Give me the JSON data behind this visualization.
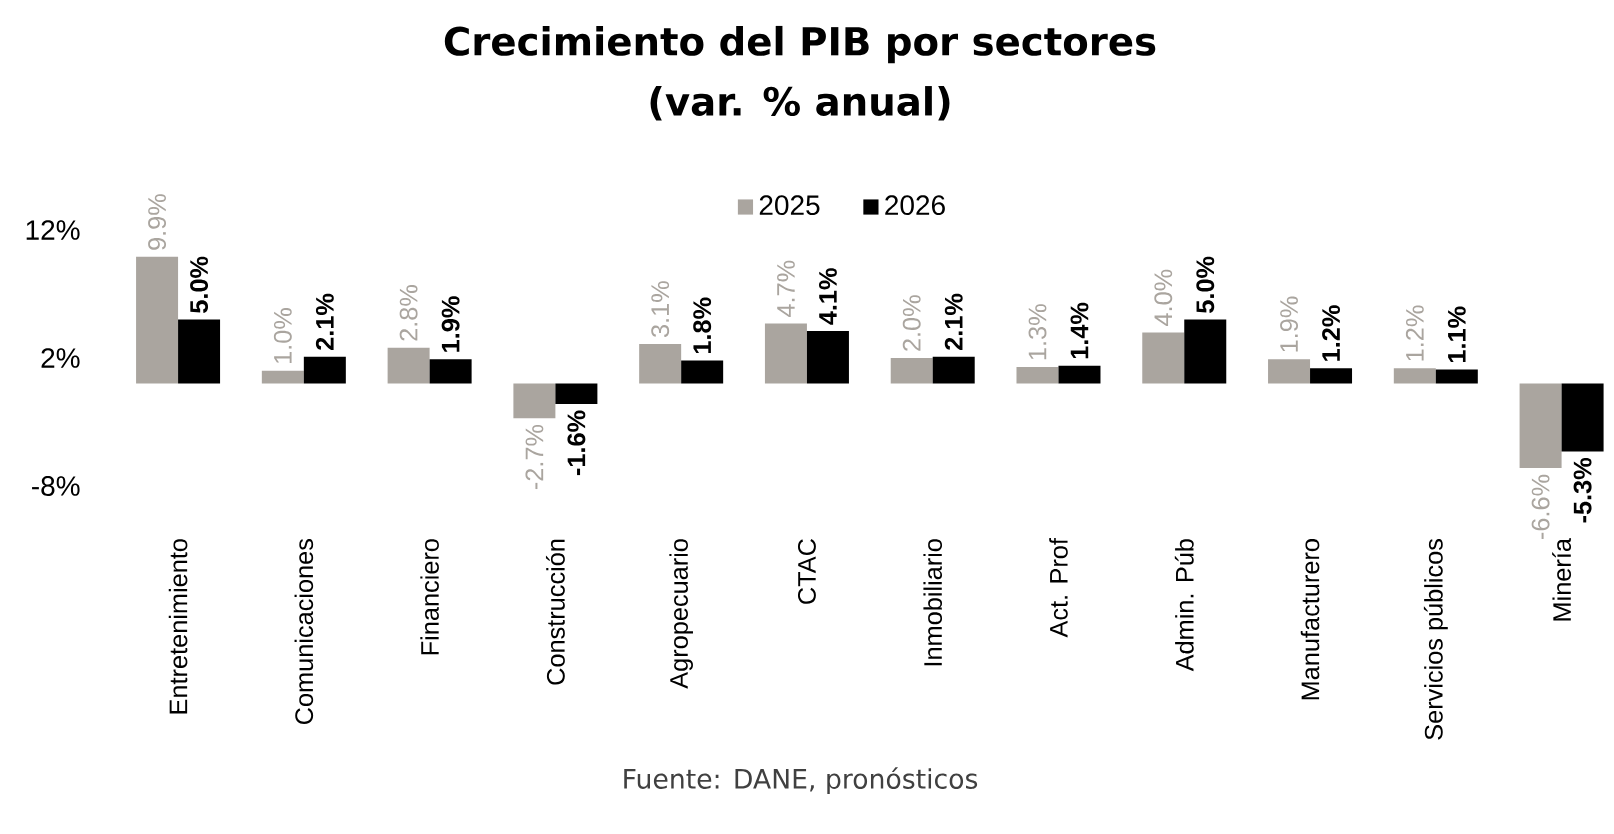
{
  "chart_data": {
    "type": "bar",
    "title": "Crecimiento del PIB por sectores",
    "subtitle": "(var. % anual)",
    "categories": [
      "Entretenimiento",
      "Comunicaciones",
      "Financiero",
      "Construcción",
      "Agropecuario",
      "CTAC",
      "Inmobiliario",
      "Act. Prof",
      "Admin. Púb",
      "Manufacturero",
      "Servicios públicos",
      "Minería"
    ],
    "series": [
      {
        "name": "2025",
        "color": "#aaa59f",
        "values": [
          9.9,
          1.0,
          2.8,
          -2.7,
          3.1,
          4.7,
          2.0,
          1.3,
          4.0,
          1.9,
          1.2,
          -6.6
        ],
        "value_labels": [
          "9.9%",
          "1.0%",
          "2.8%",
          "-2.7%",
          "3.1%",
          "4.7%",
          "2.0%",
          "1.3%",
          "4.0%",
          "1.9%",
          "1.2%",
          "-6.6%"
        ]
      },
      {
        "name": "2026",
        "color": "#000000",
        "values": [
          5.0,
          2.1,
          1.9,
          -1.6,
          1.8,
          4.1,
          2.1,
          1.4,
          5.0,
          1.2,
          1.1,
          -5.3
        ],
        "value_labels": [
          "5.0%",
          "2.1%",
          "1.9%",
          "-1.6%",
          "1.8%",
          "4.1%",
          "2.1%",
          "1.4%",
          "5.0%",
          "1.2%",
          "1.1%",
          "-5.3%"
        ]
      }
    ],
    "ylim": [
      -8,
      12
    ],
    "yticks": [
      {
        "value": 12,
        "label": "12%"
      },
      {
        "value": 2,
        "label": "2%"
      },
      {
        "value": -8,
        "label": "-8%"
      }
    ],
    "legend": "top",
    "annotations": [
      "Fuente: DANE, pronósticos"
    ]
  }
}
